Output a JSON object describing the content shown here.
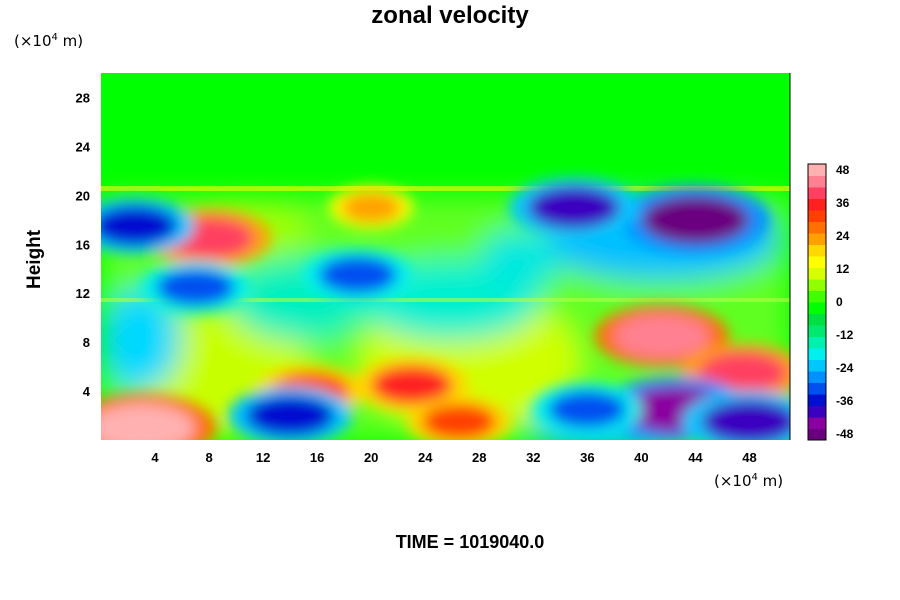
{
  "chart_data": {
    "type": "heatmap",
    "title": "zonal velocity",
    "ylabel": "Height",
    "xunit_prefix": "(×10",
    "xunit_exp": "4",
    "xunit_suffix": " m)",
    "yunit_prefix": "(×10",
    "yunit_exp": "4",
    "yunit_suffix": " m)",
    "xlim": [
      0,
      51
    ],
    "ylim": [
      0,
      30
    ],
    "xticks": [
      4,
      8,
      12,
      16,
      20,
      24,
      28,
      32,
      36,
      40,
      44,
      48
    ],
    "yticks": [
      4,
      8,
      12,
      16,
      20,
      24,
      28
    ],
    "colorbar": {
      "ticks": [
        48,
        36,
        24,
        12,
        0,
        -12,
        -24,
        -36,
        -48
      ],
      "range": [
        -48,
        48
      ],
      "colors": [
        "#6a0080",
        "#8a00a0",
        "#3a00c0",
        "#0010d0",
        "#0050f0",
        "#0090ff",
        "#00c8ff",
        "#00f0f0",
        "#00f0b0",
        "#00e870",
        "#00e040",
        "#00ff00",
        "#40ff00",
        "#90ff00",
        "#d8ff00",
        "#ffff00",
        "#ffd800",
        "#ffa000",
        "#ff7000",
        "#ff4000",
        "#ff2020",
        "#ff4060",
        "#ff8090",
        "#ffb0b0"
      ]
    },
    "features": [
      {
        "x": 41.5,
        "y": 8.5,
        "value": 40
      },
      {
        "x": 44,
        "y": 18,
        "value": -46
      },
      {
        "x": 35,
        "y": 19,
        "value": -38
      },
      {
        "x": 8,
        "y": 16.5,
        "value": 36
      },
      {
        "x": 23,
        "y": 4.5,
        "value": 32
      },
      {
        "x": 47.5,
        "y": 5.5,
        "value": 36
      },
      {
        "x": 42.5,
        "y": 2.5,
        "value": -44
      },
      {
        "x": 48,
        "y": 1.5,
        "value": -40
      },
      {
        "x": 3,
        "y": 1,
        "value": 46
      },
      {
        "x": 19,
        "y": 13.5,
        "value": -30
      },
      {
        "x": 7,
        "y": 12.5,
        "value": -30
      },
      {
        "x": 2.5,
        "y": 17.5,
        "value": -34
      },
      {
        "x": 15.5,
        "y": 4,
        "value": 30
      },
      {
        "x": 36,
        "y": 2.5,
        "value": -30
      },
      {
        "x": 20,
        "y": 19,
        "value": 20
      },
      {
        "x": 14,
        "y": 2,
        "value": -36
      },
      {
        "x": 26.5,
        "y": 1.5,
        "value": 28
      }
    ]
  },
  "time_label": "TIME = 1019040.0"
}
